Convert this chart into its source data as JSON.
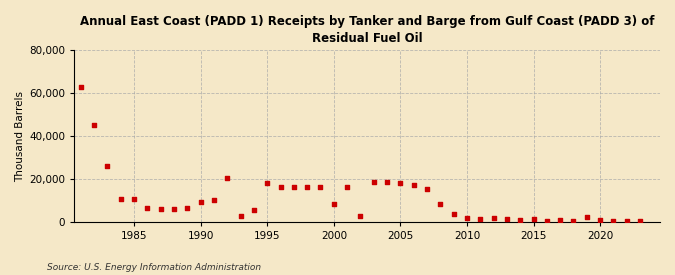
{
  "title": "Annual East Coast (PADD 1) Receipts by Tanker and Barge from Gulf Coast (PADD 3) of\nResidual Fuel Oil",
  "ylabel": "Thousand Barrels",
  "source": "Source: U.S. Energy Information Administration",
  "background_color": "#f5e8c8",
  "marker_color": "#cc0000",
  "years": [
    1981,
    1982,
    1983,
    1984,
    1985,
    1986,
    1987,
    1988,
    1989,
    1990,
    1991,
    1992,
    1993,
    1994,
    1995,
    1996,
    1997,
    1998,
    1999,
    2000,
    2001,
    2002,
    2003,
    2004,
    2005,
    2006,
    2007,
    2008,
    2009,
    2010,
    2011,
    2012,
    2013,
    2014,
    2015,
    2016,
    2017,
    2018,
    2019,
    2020,
    2021,
    2022,
    2023
  ],
  "values": [
    63000,
    45000,
    26000,
    10500,
    10500,
    6500,
    6000,
    6000,
    6500,
    9000,
    10000,
    20500,
    2500,
    5500,
    18000,
    16000,
    16000,
    16000,
    16000,
    8500,
    16000,
    2500,
    18500,
    18500,
    18000,
    17000,
    15500,
    8500,
    3500,
    1800,
    1500,
    1800,
    1500,
    1000,
    1500,
    500,
    800,
    500,
    2000,
    800,
    500,
    500,
    500
  ],
  "ylim": [
    0,
    80000
  ],
  "yticks": [
    0,
    20000,
    40000,
    60000,
    80000
  ],
  "xlim": [
    1980.5,
    2024.5
  ],
  "xticks": [
    1985,
    1990,
    1995,
    2000,
    2005,
    2010,
    2015,
    2020
  ]
}
